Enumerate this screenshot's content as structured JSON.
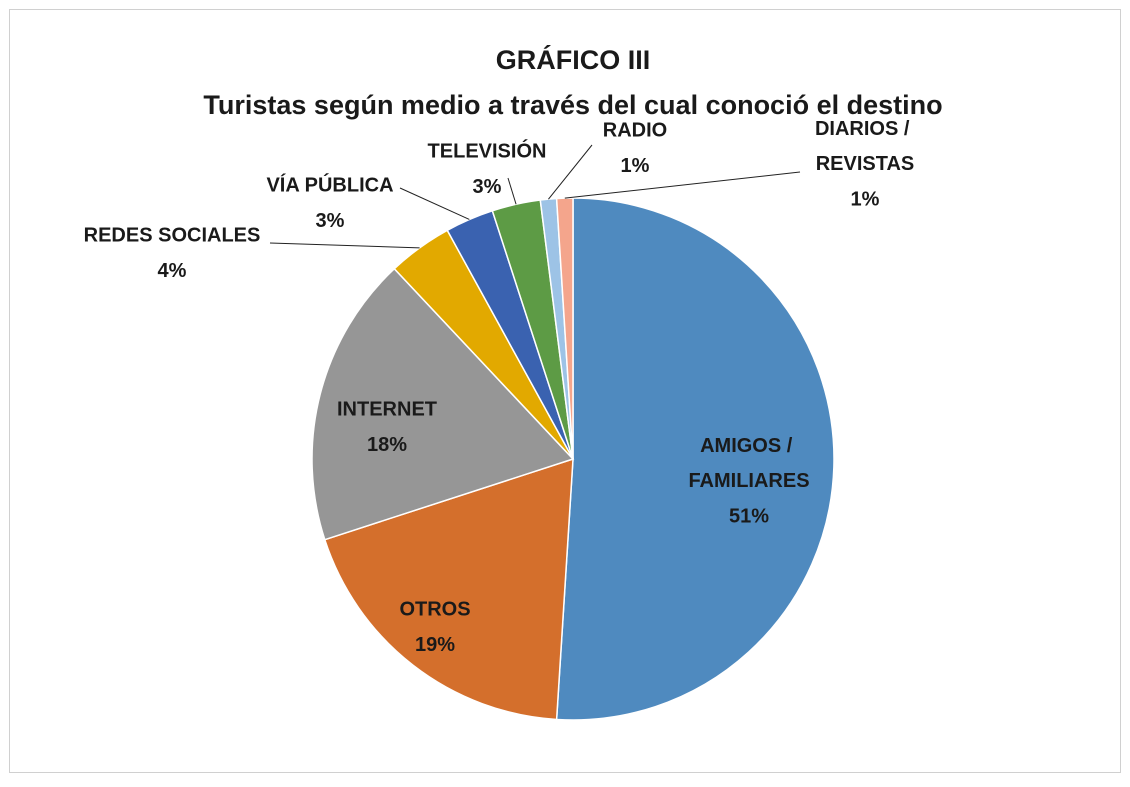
{
  "chart_data": {
    "type": "pie",
    "title": "GRÁFICO III",
    "subtitle": "Turistas según medio a través del cual conoció el destino",
    "categories": [
      "AMIGOS / FAMILIARES",
      "OTROS",
      "INTERNET",
      "REDES SOCIALES",
      "VÍA PÚBLICA",
      "TELEVISIÓN",
      "RADIO",
      "DIARIOS / REVISTAS"
    ],
    "values": [
      51,
      19,
      18,
      4,
      3,
      3,
      1,
      1
    ],
    "value_labels": [
      "51%",
      "19%",
      "18%",
      "4%",
      "3%",
      "3%",
      "1%",
      "1%"
    ],
    "colors": [
      "#4f8abf",
      "#d46f2c",
      "#969696",
      "#e2a900",
      "#3a62b0",
      "#5d9b45",
      "#9dc3e6",
      "#f4a58c"
    ]
  }
}
